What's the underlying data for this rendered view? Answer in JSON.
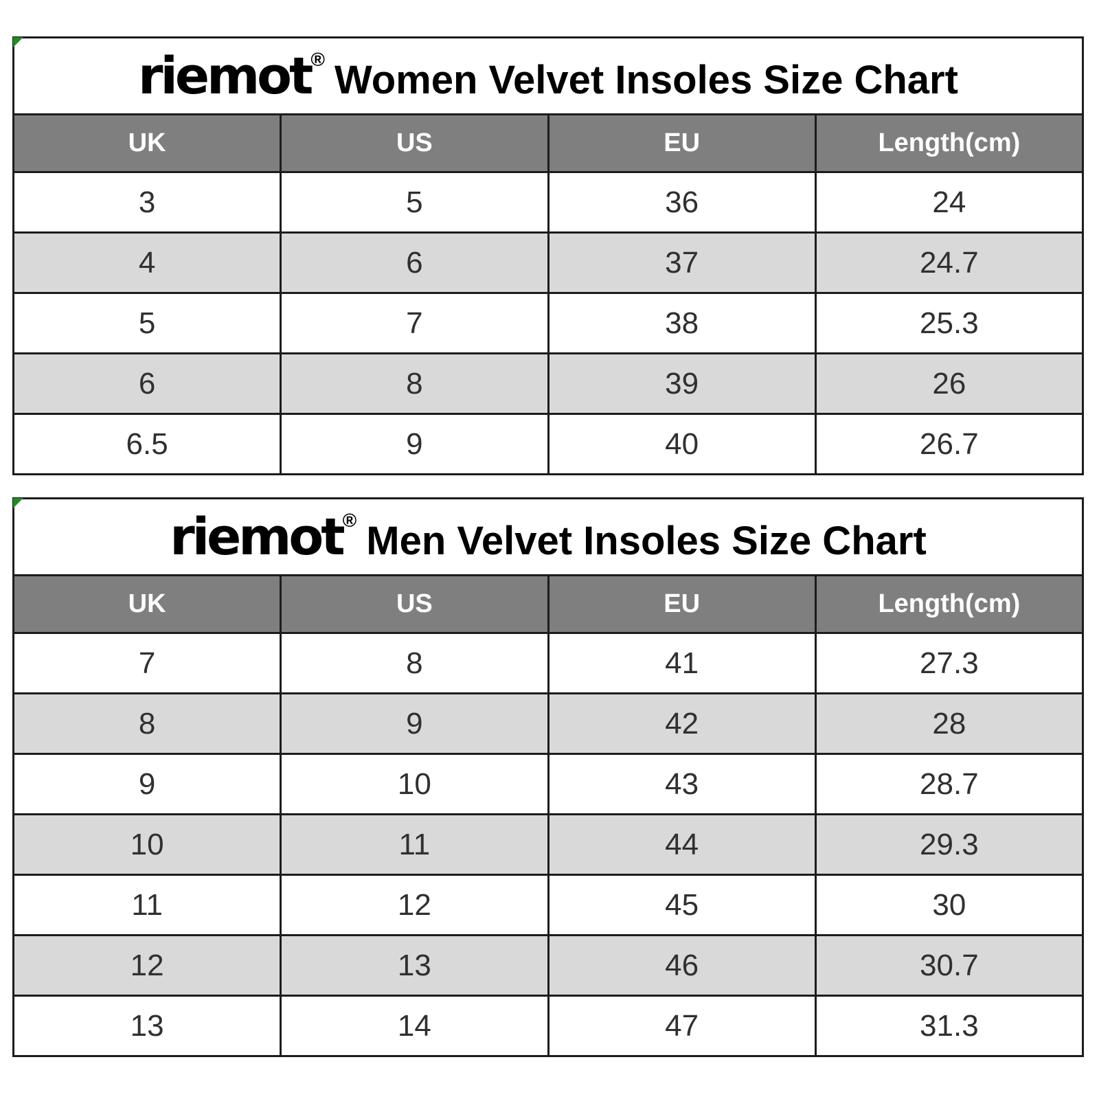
{
  "colors": {
    "page_background": "#ffffff",
    "table_border": "#1c1c1c",
    "header_background": "#7f7f7f",
    "header_text": "#ffffff",
    "row_background": "#ffffff",
    "row_alternate_background": "#d9d9d9",
    "cell_text": "#303030",
    "title_text": "#000000",
    "corner_marker_green": "#1f8b24"
  },
  "chart_data": [
    {
      "type": "table",
      "logo": "riemot",
      "registered_mark": "®",
      "title": "Women Velvet Insoles Size Chart",
      "columns": [
        "UK",
        "US",
        "EU",
        "Length(cm)"
      ],
      "rows": [
        [
          "3",
          "5",
          "36",
          "24"
        ],
        [
          "4",
          "6",
          "37",
          "24.7"
        ],
        [
          "5",
          "7",
          "38",
          "25.3"
        ],
        [
          "6",
          "8",
          "39",
          "26"
        ],
        [
          "6.5",
          "9",
          "40",
          "26.7"
        ]
      ]
    },
    {
      "type": "table",
      "logo": "riemot",
      "registered_mark": "®",
      "title": "Men Velvet Insoles Size Chart",
      "columns": [
        "UK",
        "US",
        "EU",
        "Length(cm)"
      ],
      "rows": [
        [
          "7",
          "8",
          "41",
          "27.3"
        ],
        [
          "8",
          "9",
          "42",
          "28"
        ],
        [
          "9",
          "10",
          "43",
          "28.7"
        ],
        [
          "10",
          "11",
          "44",
          "29.3"
        ],
        [
          "11",
          "12",
          "45",
          "30"
        ],
        [
          "12",
          "13",
          "46",
          "30.7"
        ],
        [
          "13",
          "14",
          "47",
          "31.3"
        ]
      ]
    }
  ]
}
